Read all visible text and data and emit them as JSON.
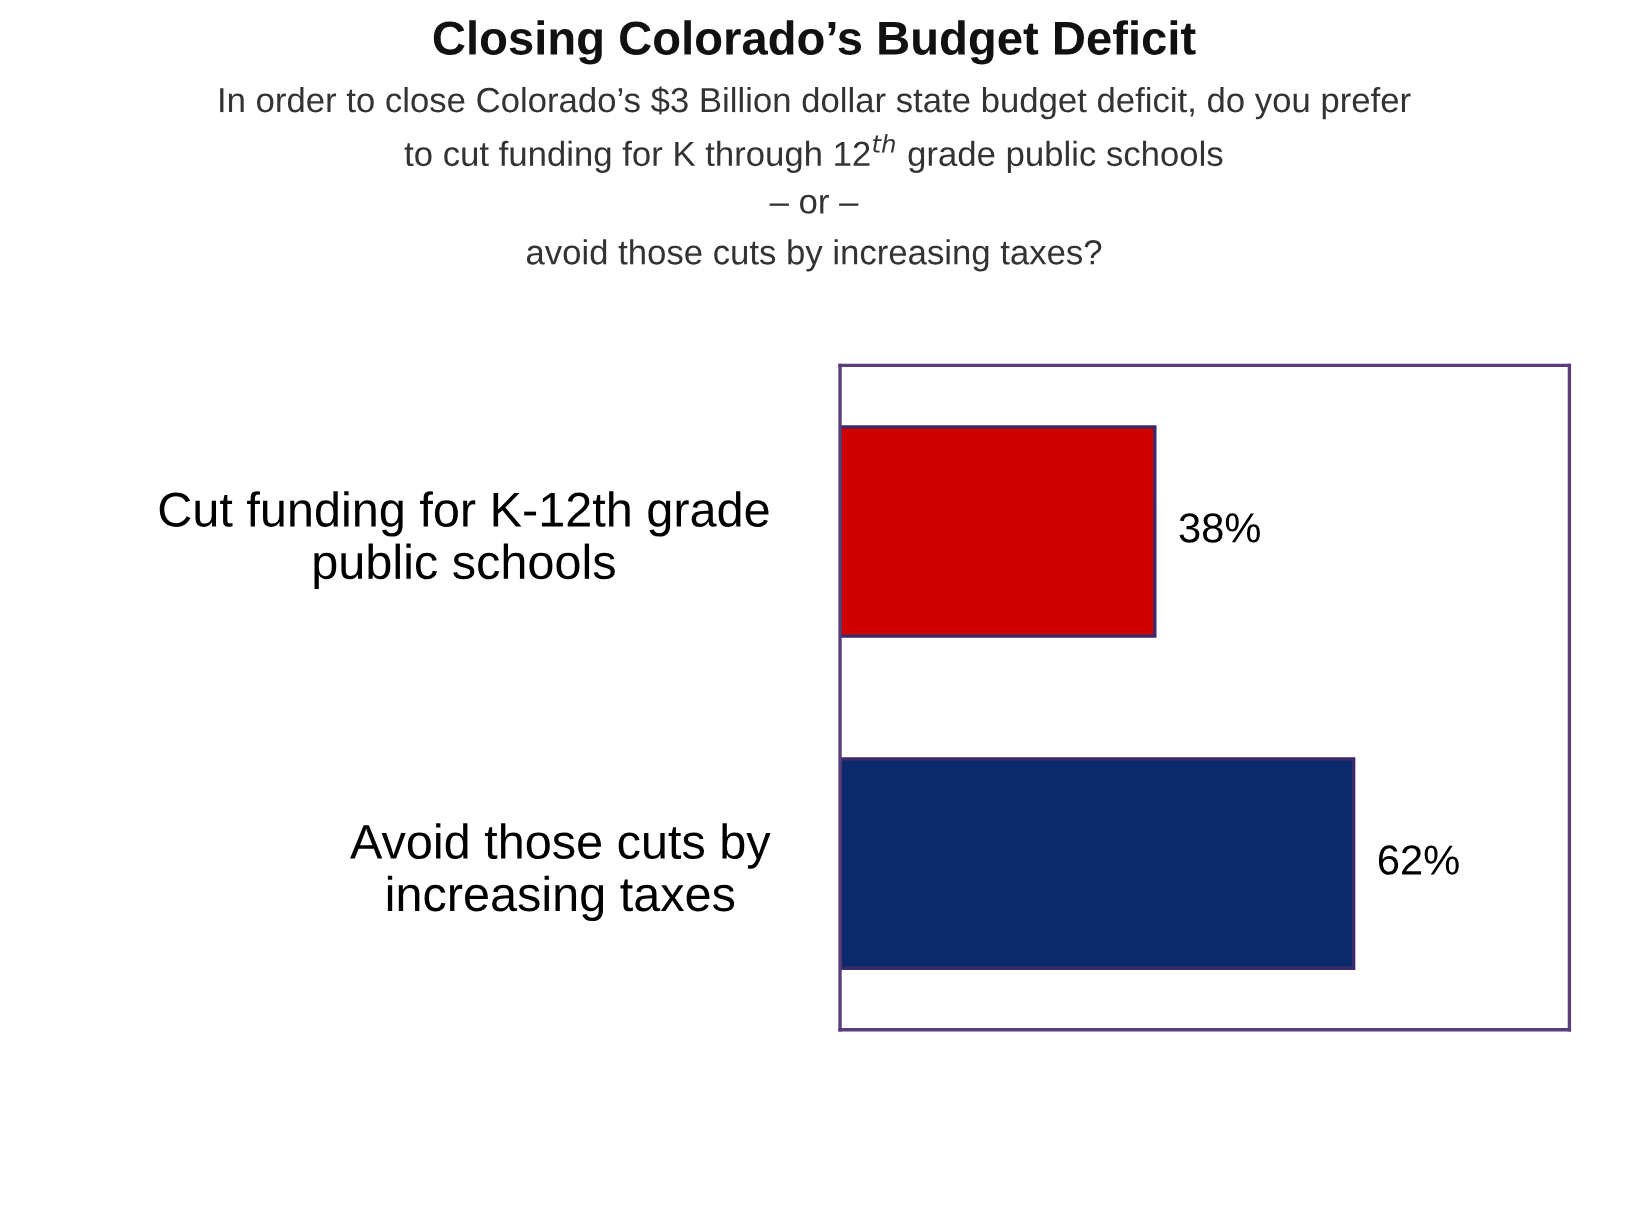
{
  "chart_data": {
    "type": "bar",
    "orientation": "horizontal",
    "title": "Closing Colorado’s Budget Deficit",
    "subtitle": "In order to close Colorado’s $3 Billion dollar state budget deficit, do you prefer\nto cut funding for K through 12$^{th}$ grade public schools\n– or –\navoid those cuts by increasing taxes?",
    "categories": [
      "Cut funding for K-12th grade\npublic schools",
      "Avoid those cuts by\nincreasing taxes"
    ],
    "values": [
      38,
      62
    ],
    "colors": [
      "#d00000",
      "#0b2a6b"
    ],
    "value_labels": [
      "38%",
      "62%"
    ]
  }
}
